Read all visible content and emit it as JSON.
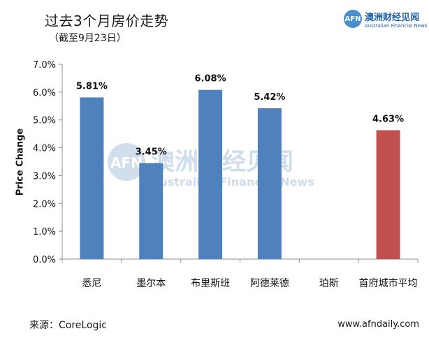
{
  "header": {
    "title": "过去3个月房价走势",
    "subtitle": "（截至9月23日）"
  },
  "brand": {
    "logo_text": "AFN",
    "name_cn": "澳洲财经见闻",
    "name_en": "Australian Financial News"
  },
  "watermark": {
    "logo_text": "AFN",
    "name_cn": "澳洲财经见闻",
    "name_en": "Australian Financial News"
  },
  "footer": {
    "source": "来源：CoreLogic",
    "website": "www.afndaily.com"
  },
  "colors": {
    "bar": "#4F81BD",
    "highlight_bar": "#C0504D",
    "axis": "#8c8c8c",
    "watermark": "#c9d9ea"
  },
  "chart_data": {
    "type": "bar",
    "title": "",
    "xlabel": "",
    "ylabel": "Price Change",
    "ylim": [
      0,
      7
    ],
    "yticks": [
      "0.0%",
      "1.0%",
      "2.0%",
      "3.0%",
      "4.0%",
      "5.0%",
      "6.0%",
      "7.0%"
    ],
    "categories": [
      "悉尼",
      "墨尔本",
      "布里斯班",
      "阿德莱德",
      "珀斯",
      "首府城市平均"
    ],
    "values": [
      5.81,
      3.45,
      6.08,
      5.42,
      null,
      4.63
    ],
    "data_labels": [
      "5.81%",
      "3.45%",
      "6.08%",
      "5.42%",
      "",
      "4.63%"
    ],
    "highlight_index": 5,
    "grid": false,
    "legend": "none"
  }
}
